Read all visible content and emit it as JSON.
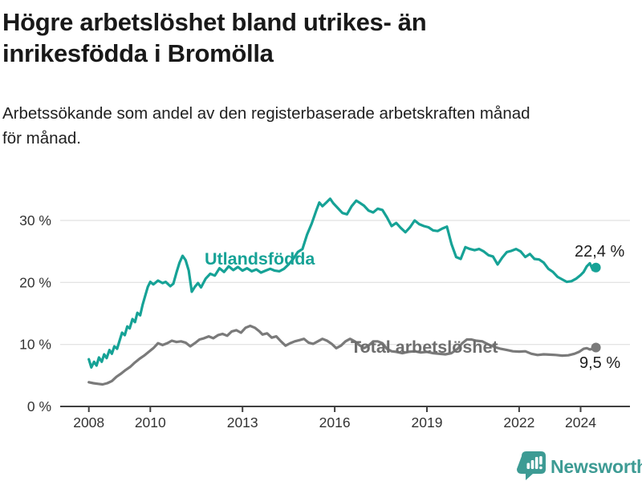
{
  "header": {
    "title_line1": "Högre arbetslöshet bland utrikes- än",
    "title_line2": "inrikesfödda i Bromölla",
    "subtitle_line1": "Arbetssökande som andel av den registerbaserade arbetskraften månad",
    "subtitle_line2": "för månad."
  },
  "chart_data": {
    "type": "line",
    "grid": "horizontal",
    "legend": "inline-labels",
    "x_axis": {
      "ticks": [
        2008,
        2010,
        2013,
        2016,
        2019,
        2022,
        2024
      ],
      "tick_labels": [
        "2008",
        "2010",
        "2013",
        "2016",
        "2019",
        "2022",
        "2024"
      ],
      "range": [
        2007.1,
        2025.6
      ]
    },
    "y_axis": {
      "ticks": [
        0,
        10,
        20,
        30
      ],
      "tick_labels": [
        "0 %",
        "10 %",
        "20 %",
        "30 %"
      ],
      "range": [
        0,
        38.5
      ]
    },
    "colors": {
      "utlandsfodda": "#16a296",
      "total": "#7a7a7a",
      "axis": "#404040",
      "grid": "#dadada"
    },
    "series": [
      {
        "name": "Utlandsfödda",
        "color": "#16a296",
        "end_label": "22,4 %",
        "end_value": 22.4,
        "points": [
          [
            2008.0,
            7.6
          ],
          [
            2008.08,
            6.3
          ],
          [
            2008.17,
            7.2
          ],
          [
            2008.25,
            6.6
          ],
          [
            2008.33,
            7.9
          ],
          [
            2008.42,
            7.2
          ],
          [
            2008.5,
            8.4
          ],
          [
            2008.58,
            7.8
          ],
          [
            2008.67,
            9.1
          ],
          [
            2008.75,
            8.5
          ],
          [
            2008.83,
            9.7
          ],
          [
            2008.92,
            9.3
          ],
          [
            2009.0,
            10.6
          ],
          [
            2009.08,
            11.9
          ],
          [
            2009.17,
            11.5
          ],
          [
            2009.25,
            12.9
          ],
          [
            2009.33,
            12.6
          ],
          [
            2009.42,
            14.1
          ],
          [
            2009.5,
            13.6
          ],
          [
            2009.58,
            15.1
          ],
          [
            2009.67,
            14.7
          ],
          [
            2009.75,
            16.4
          ],
          [
            2009.83,
            17.8
          ],
          [
            2009.92,
            19.3
          ],
          [
            2010.0,
            20.1
          ],
          [
            2010.1,
            19.7
          ],
          [
            2010.25,
            20.3
          ],
          [
            2010.4,
            19.9
          ],
          [
            2010.5,
            20.1
          ],
          [
            2010.65,
            19.4
          ],
          [
            2010.75,
            19.8
          ],
          [
            2010.85,
            21.6
          ],
          [
            2010.95,
            23.2
          ],
          [
            2011.05,
            24.3
          ],
          [
            2011.15,
            23.6
          ],
          [
            2011.25,
            21.9
          ],
          [
            2011.35,
            18.5
          ],
          [
            2011.45,
            19.3
          ],
          [
            2011.55,
            19.9
          ],
          [
            2011.65,
            19.2
          ],
          [
            2011.8,
            20.6
          ],
          [
            2011.95,
            21.4
          ],
          [
            2012.1,
            21.1
          ],
          [
            2012.25,
            22.3
          ],
          [
            2012.4,
            21.7
          ],
          [
            2012.55,
            22.6
          ],
          [
            2012.7,
            22.0
          ],
          [
            2012.85,
            22.5
          ],
          [
            2013.0,
            21.9
          ],
          [
            2013.15,
            22.3
          ],
          [
            2013.3,
            21.8
          ],
          [
            2013.45,
            22.1
          ],
          [
            2013.6,
            21.6
          ],
          [
            2013.75,
            21.9
          ],
          [
            2013.9,
            22.2
          ],
          [
            2014.05,
            21.9
          ],
          [
            2014.2,
            21.8
          ],
          [
            2014.35,
            22.2
          ],
          [
            2014.5,
            22.9
          ],
          [
            2014.65,
            23.8
          ],
          [
            2014.8,
            24.9
          ],
          [
            2014.95,
            25.4
          ],
          [
            2015.1,
            27.7
          ],
          [
            2015.25,
            29.5
          ],
          [
            2015.4,
            31.6
          ],
          [
            2015.5,
            32.9
          ],
          [
            2015.6,
            32.3
          ],
          [
            2015.75,
            33.0
          ],
          [
            2015.85,
            33.5
          ],
          [
            2015.95,
            32.8
          ],
          [
            2016.1,
            32.0
          ],
          [
            2016.25,
            31.2
          ],
          [
            2016.4,
            31.0
          ],
          [
            2016.55,
            32.3
          ],
          [
            2016.7,
            33.2
          ],
          [
            2016.8,
            32.9
          ],
          [
            2016.95,
            32.4
          ],
          [
            2017.1,
            31.6
          ],
          [
            2017.25,
            31.3
          ],
          [
            2017.4,
            31.9
          ],
          [
            2017.55,
            31.7
          ],
          [
            2017.7,
            30.5
          ],
          [
            2017.85,
            29.1
          ],
          [
            2018.0,
            29.6
          ],
          [
            2018.15,
            28.8
          ],
          [
            2018.3,
            28.1
          ],
          [
            2018.45,
            28.9
          ],
          [
            2018.6,
            30.0
          ],
          [
            2018.75,
            29.4
          ],
          [
            2018.9,
            29.1
          ],
          [
            2019.05,
            28.9
          ],
          [
            2019.2,
            28.4
          ],
          [
            2019.35,
            28.3
          ],
          [
            2019.5,
            28.7
          ],
          [
            2019.65,
            29.0
          ],
          [
            2019.8,
            26.2
          ],
          [
            2019.95,
            24.1
          ],
          [
            2020.1,
            23.8
          ],
          [
            2020.25,
            25.7
          ],
          [
            2020.4,
            25.4
          ],
          [
            2020.55,
            25.2
          ],
          [
            2020.7,
            25.4
          ],
          [
            2020.85,
            25.0
          ],
          [
            2021.0,
            24.4
          ],
          [
            2021.15,
            24.2
          ],
          [
            2021.3,
            22.9
          ],
          [
            2021.45,
            24.0
          ],
          [
            2021.6,
            24.9
          ],
          [
            2021.75,
            25.1
          ],
          [
            2021.9,
            25.4
          ],
          [
            2022.05,
            25.0
          ],
          [
            2022.2,
            24.1
          ],
          [
            2022.35,
            24.6
          ],
          [
            2022.5,
            23.8
          ],
          [
            2022.65,
            23.7
          ],
          [
            2022.8,
            23.2
          ],
          [
            2022.95,
            22.2
          ],
          [
            2023.1,
            21.7
          ],
          [
            2023.25,
            20.9
          ],
          [
            2023.4,
            20.5
          ],
          [
            2023.55,
            20.1
          ],
          [
            2023.7,
            20.2
          ],
          [
            2023.85,
            20.6
          ],
          [
            2024.0,
            21.2
          ],
          [
            2024.1,
            21.7
          ],
          [
            2024.2,
            22.6
          ],
          [
            2024.3,
            23.1
          ],
          [
            2024.4,
            22.0
          ],
          [
            2024.5,
            22.4
          ]
        ]
      },
      {
        "name": "Total arbetslöshet",
        "color": "#7a7a7a",
        "end_label": "9,5 %",
        "end_value": 9.5,
        "points": [
          [
            2008.0,
            3.9
          ],
          [
            2008.15,
            3.75
          ],
          [
            2008.3,
            3.65
          ],
          [
            2008.45,
            3.55
          ],
          [
            2008.6,
            3.75
          ],
          [
            2008.75,
            4.1
          ],
          [
            2008.9,
            4.8
          ],
          [
            2009.05,
            5.3
          ],
          [
            2009.2,
            5.9
          ],
          [
            2009.35,
            6.4
          ],
          [
            2009.5,
            7.1
          ],
          [
            2009.65,
            7.7
          ],
          [
            2009.8,
            8.2
          ],
          [
            2009.95,
            8.8
          ],
          [
            2010.1,
            9.4
          ],
          [
            2010.25,
            10.2
          ],
          [
            2010.4,
            9.9
          ],
          [
            2010.55,
            10.2
          ],
          [
            2010.7,
            10.6
          ],
          [
            2010.85,
            10.4
          ],
          [
            2011.0,
            10.5
          ],
          [
            2011.15,
            10.3
          ],
          [
            2011.3,
            9.7
          ],
          [
            2011.45,
            10.2
          ],
          [
            2011.6,
            10.8
          ],
          [
            2011.75,
            11.0
          ],
          [
            2011.9,
            11.3
          ],
          [
            2012.05,
            11.0
          ],
          [
            2012.2,
            11.5
          ],
          [
            2012.35,
            11.7
          ],
          [
            2012.5,
            11.4
          ],
          [
            2012.65,
            12.1
          ],
          [
            2012.8,
            12.3
          ],
          [
            2012.95,
            11.9
          ],
          [
            2013.1,
            12.7
          ],
          [
            2013.25,
            13.0
          ],
          [
            2013.4,
            12.7
          ],
          [
            2013.55,
            12.1
          ],
          [
            2013.65,
            11.6
          ],
          [
            2013.8,
            11.8
          ],
          [
            2013.95,
            11.1
          ],
          [
            2014.1,
            11.3
          ],
          [
            2014.25,
            10.5
          ],
          [
            2014.4,
            9.8
          ],
          [
            2014.55,
            10.2
          ],
          [
            2014.7,
            10.5
          ],
          [
            2014.85,
            10.7
          ],
          [
            2015.0,
            10.9
          ],
          [
            2015.15,
            10.3
          ],
          [
            2015.3,
            10.1
          ],
          [
            2015.45,
            10.5
          ],
          [
            2015.6,
            10.9
          ],
          [
            2015.75,
            10.6
          ],
          [
            2015.9,
            10.1
          ],
          [
            2016.05,
            9.4
          ],
          [
            2016.2,
            9.8
          ],
          [
            2016.35,
            10.5
          ],
          [
            2016.5,
            10.9
          ],
          [
            2016.65,
            10.5
          ],
          [
            2016.8,
            9.9
          ],
          [
            2016.95,
            9.4
          ],
          [
            2017.1,
            9.8
          ],
          [
            2017.25,
            10.5
          ],
          [
            2017.4,
            10.5
          ],
          [
            2017.55,
            10.2
          ],
          [
            2017.7,
            9.3
          ],
          [
            2017.85,
            8.9
          ],
          [
            2018.0,
            8.8
          ],
          [
            2018.2,
            8.6
          ],
          [
            2018.4,
            8.8
          ],
          [
            2018.6,
            8.9
          ],
          [
            2018.8,
            8.7
          ],
          [
            2019.0,
            8.8
          ],
          [
            2019.2,
            8.6
          ],
          [
            2019.4,
            8.5
          ],
          [
            2019.6,
            8.4
          ],
          [
            2019.8,
            8.6
          ],
          [
            2020.0,
            9.3
          ],
          [
            2020.15,
            10.2
          ],
          [
            2020.3,
            10.8
          ],
          [
            2020.45,
            10.8
          ],
          [
            2020.6,
            10.6
          ],
          [
            2020.8,
            10.5
          ],
          [
            2021.0,
            10.0
          ],
          [
            2021.2,
            9.6
          ],
          [
            2021.4,
            9.3
          ],
          [
            2021.6,
            9.1
          ],
          [
            2021.8,
            8.9
          ],
          [
            2022.0,
            8.85
          ],
          [
            2022.2,
            8.9
          ],
          [
            2022.4,
            8.5
          ],
          [
            2022.6,
            8.3
          ],
          [
            2022.8,
            8.4
          ],
          [
            2023.0,
            8.35
          ],
          [
            2023.2,
            8.3
          ],
          [
            2023.4,
            8.2
          ],
          [
            2023.6,
            8.25
          ],
          [
            2023.8,
            8.5
          ],
          [
            2023.95,
            8.8
          ],
          [
            2024.1,
            9.3
          ],
          [
            2024.2,
            9.4
          ],
          [
            2024.3,
            9.2
          ],
          [
            2024.4,
            9.3
          ],
          [
            2024.5,
            9.5
          ]
        ]
      }
    ]
  },
  "footer": {
    "brand": "Newsworthy"
  }
}
